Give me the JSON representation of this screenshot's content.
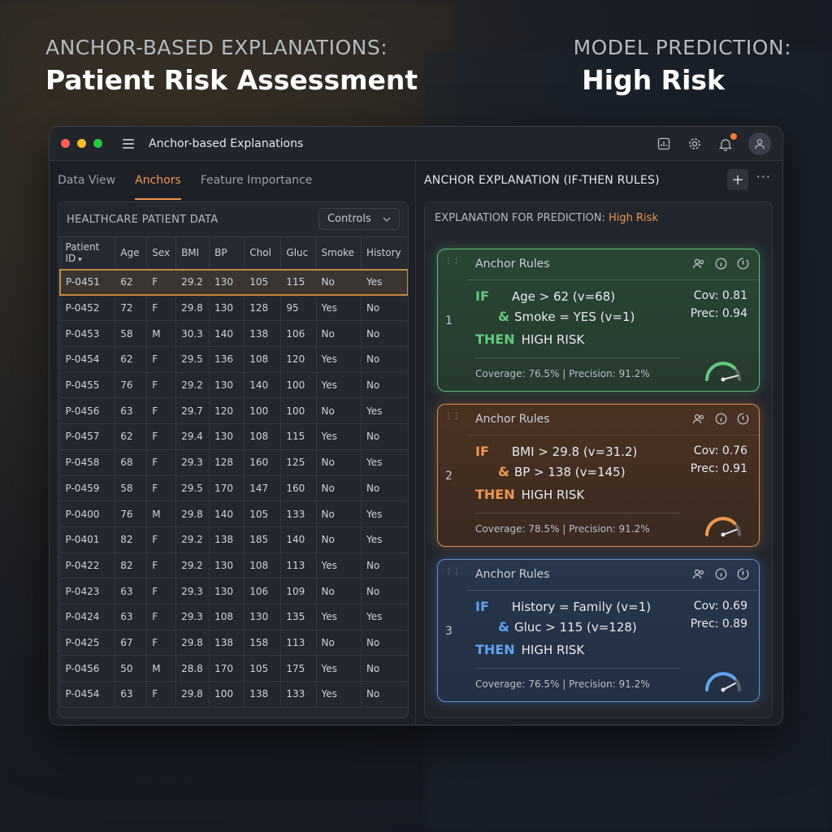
{
  "hero": {
    "left_kicker": "ANCHOR-BASED EXPLANATIONS:",
    "left_title": "Patient Risk Assessment",
    "right_kicker": "MODEL PREDICTION:",
    "right_title": "High Risk"
  },
  "window": {
    "title": "Anchor-based Explanations",
    "toolbar_icons": [
      "chart-icon",
      "gear-icon",
      "bell-icon",
      "user-icon"
    ]
  },
  "left": {
    "tabs": [
      {
        "label": "Data View",
        "active": false
      },
      {
        "label": "Anchors",
        "active": true
      },
      {
        "label": "Feature Importance",
        "active": false
      }
    ],
    "card_title": "HEALTHCARE PATIENT DATA",
    "controls_label": "Controls",
    "columns": [
      "Patient ID",
      "Age",
      "Sex",
      "BMI",
      "BP",
      "Chol",
      "Gluc",
      "Smoke",
      "History"
    ],
    "rows": [
      [
        "P-0451",
        "62",
        "F",
        "29.2",
        "130",
        "105",
        "115",
        "No",
        "Yes"
      ],
      [
        "P-0452",
        "72",
        "F",
        "29.8",
        "130",
        "128",
        "95",
        "Yes",
        "No"
      ],
      [
        "P-0453",
        "58",
        "M",
        "30.3",
        "140",
        "138",
        "106",
        "No",
        "No"
      ],
      [
        "P-0454",
        "62",
        "F",
        "29.5",
        "136",
        "108",
        "120",
        "Yes",
        "No"
      ],
      [
        "P-0455",
        "76",
        "F",
        "29.2",
        "130",
        "140",
        "100",
        "Yes",
        "No"
      ],
      [
        "P-0456",
        "63",
        "F",
        "29.7",
        "120",
        "100",
        "100",
        "No",
        "Yes"
      ],
      [
        "P-0457",
        "62",
        "F",
        "29.4",
        "130",
        "108",
        "115",
        "Yes",
        "No"
      ],
      [
        "P-0458",
        "68",
        "F",
        "29.3",
        "128",
        "160",
        "125",
        "No",
        "Yes"
      ],
      [
        "P-0459",
        "58",
        "F",
        "29.5",
        "170",
        "147",
        "160",
        "No",
        "No"
      ],
      [
        "P-0400",
        "76",
        "M",
        "29.8",
        "140",
        "105",
        "133",
        "No",
        "Yes"
      ],
      [
        "P-0401",
        "82",
        "F",
        "29.2",
        "138",
        "185",
        "140",
        "No",
        "Yes"
      ],
      [
        "P-0422",
        "82",
        "F",
        "29.2",
        "130",
        "108",
        "113",
        "Yes",
        "No"
      ],
      [
        "P-0423",
        "63",
        "F",
        "29.3",
        "130",
        "106",
        "109",
        "No",
        "No"
      ],
      [
        "P-0424",
        "63",
        "F",
        "29.3",
        "108",
        "130",
        "135",
        "Yes",
        "Yes"
      ],
      [
        "P-0425",
        "67",
        "F",
        "29.8",
        "138",
        "158",
        "113",
        "No",
        "No"
      ],
      [
        "P-0456",
        "50",
        "M",
        "28.8",
        "170",
        "105",
        "175",
        "Yes",
        "No"
      ],
      [
        "P-0454",
        "63",
        "F",
        "29.8",
        "100",
        "138",
        "133",
        "Yes",
        "No"
      ]
    ]
  },
  "right": {
    "title": "ANCHOR EXPLANATION (IF-THEN RULES)",
    "plus_label": "+",
    "more_label": "···",
    "explanation_prefix": "EXPLANATION FOR PREDICTION:",
    "explanation_value": "High Risk",
    "rules": [
      {
        "num": "1",
        "header": "Anchor Rules",
        "if_kw": "IF",
        "cond1": "Age > 62 (v=68)",
        "and_kw": "&",
        "cond2": "Smoke = YES (v=1)",
        "then_kw": "THEN",
        "outcome": "HIGH RISK",
        "cov": "Cov: 0.81",
        "prec": "Prec: 0.94",
        "footer": "Coverage: 76.5% | Precision: 91.2%",
        "color": "#62c97f",
        "level": 0.81
      },
      {
        "num": "2",
        "header": "Anchor Rules",
        "if_kw": "IF",
        "cond1": "BMI > 29.8 (v=31.2)",
        "and_kw": "&",
        "cond2": "BP > 138 (v=145)",
        "then_kw": "THEN",
        "outcome": "HIGH RISK",
        "cov": "Cov: 0.76",
        "prec": "Prec: 0.91",
        "footer": "Coverage: 78.5% | Precision: 91.2%",
        "color": "#f0974f",
        "level": 0.76
      },
      {
        "num": "3",
        "header": "Anchor Rules",
        "if_kw": "IF",
        "cond1": "History = Family (v=1)",
        "and_kw": "&",
        "cond2": "Gluc > 115 (v=128)",
        "then_kw": "THEN",
        "outcome": "HIGH RISK",
        "cov": "Cov: 0.69",
        "prec": "Prec: 0.89",
        "footer": "Coverage: 76.5% | Precision: 91.2%",
        "color": "#5fa3ef",
        "level": 0.69
      }
    ]
  }
}
